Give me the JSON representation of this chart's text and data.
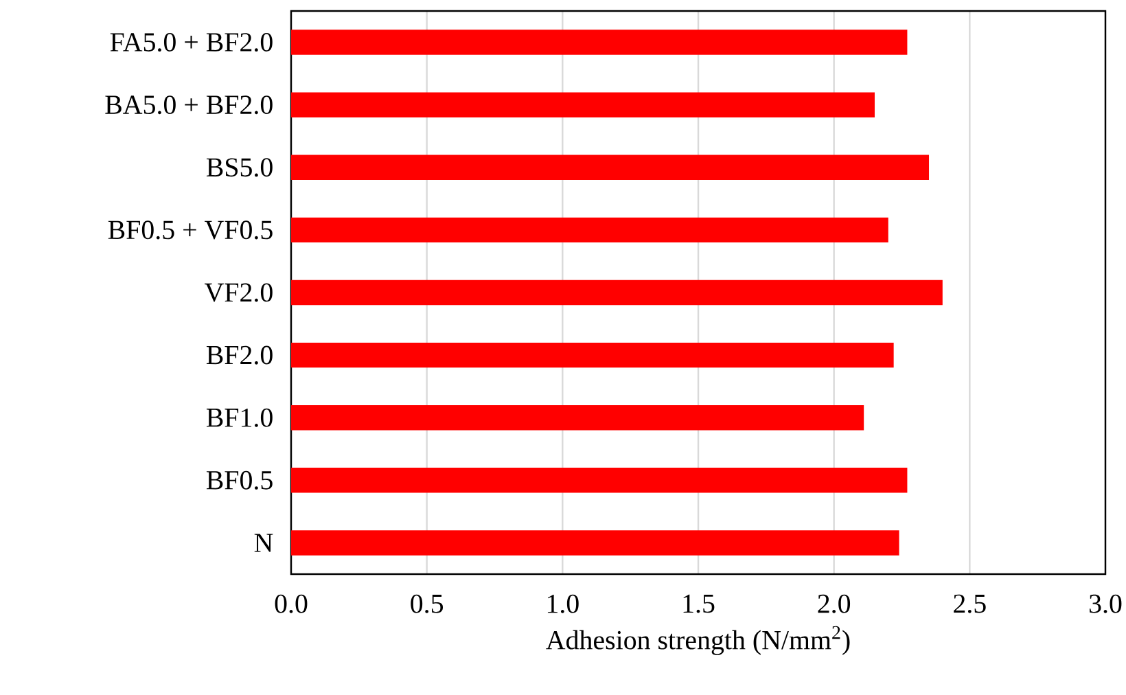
{
  "chart_data": {
    "type": "bar",
    "orientation": "horizontal",
    "xlabel": "Adhesion strength (N/mm$^{2}$)",
    "categories": [
      "FA5.0 + BF2.0",
      "BA5.0 + BF2.0",
      "BS5.0",
      "BF0.5 + VF0.5",
      "VF2.0",
      "BF2.0",
      "BF1.0",
      "BF0.5",
      "N"
    ],
    "values": [
      2.27,
      2.15,
      2.35,
      2.2,
      2.4,
      2.22,
      2.11,
      2.27,
      2.24
    ],
    "color": "#ff0000",
    "xlim": [
      0,
      3
    ],
    "xticks": [
      {
        "value": 0,
        "label": "0.0"
      },
      {
        "value": 0.5,
        "label": "0.5"
      },
      {
        "value": 1,
        "label": "1.0"
      },
      {
        "value": 1.5,
        "label": "1.5"
      },
      {
        "value": 2,
        "label": "2.0"
      },
      {
        "value": 2.5,
        "label": "2.5"
      },
      {
        "value": 3,
        "label": "3.0"
      }
    ],
    "grid": "x"
  }
}
